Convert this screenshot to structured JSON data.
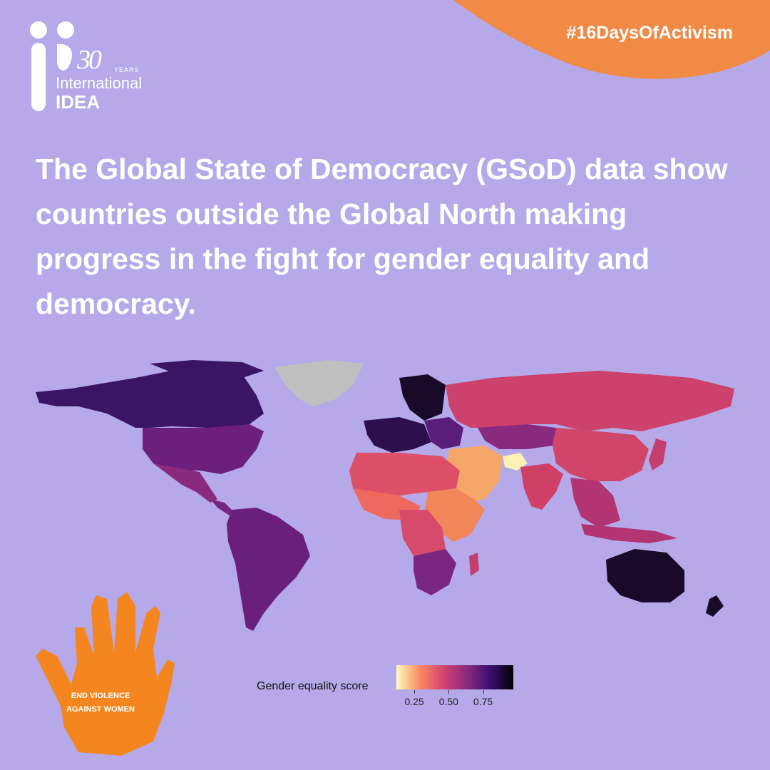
{
  "brand": {
    "logo_30": "30",
    "logo_years": "YEARS",
    "logo_international": "International",
    "logo_idea": "IDEA"
  },
  "hashtag": "#16DaysOfActivism",
  "headline": "The Global State of Democracy (GSoD) data show countries outside the Global North making progress in the fight for gender equality and democracy.",
  "legend": {
    "title": "Gender equality score",
    "ticks": [
      "0.25",
      "0.50",
      "0.75"
    ],
    "tick_values": [
      0.25,
      0.5,
      0.75
    ],
    "range": [
      0.12,
      0.97
    ]
  },
  "badge": {
    "line1": "END VIOLENCE",
    "line2": "AGAINST WOMEN",
    "icon": "handprint-icon"
  },
  "colors": {
    "background": "#b5a9ea",
    "accent_orange": "#f08a45",
    "hand_orange": "#f5861f",
    "no_data": "#bfbfbf"
  },
  "chart_data": {
    "type": "choropleth",
    "title": "",
    "legend_title": "Gender equality score",
    "scale": "magma (reversed)",
    "ticks": [
      0.25,
      0.5,
      0.75
    ],
    "regions": [
      {
        "name": "Canada",
        "value": 0.85
      },
      {
        "name": "United States",
        "value": 0.7
      },
      {
        "name": "Mexico",
        "value": 0.6
      },
      {
        "name": "Central America",
        "value": 0.6
      },
      {
        "name": "South America",
        "value": 0.68
      },
      {
        "name": "Greenland",
        "value": null
      },
      {
        "name": "Nordics",
        "value": 0.95
      },
      {
        "name": "Western Europe",
        "value": 0.9
      },
      {
        "name": "Eastern Europe",
        "value": 0.75
      },
      {
        "name": "Russia",
        "value": 0.45
      },
      {
        "name": "Central Asia",
        "value": 0.6
      },
      {
        "name": "China",
        "value": 0.45
      },
      {
        "name": "India",
        "value": 0.45
      },
      {
        "name": "Middle East",
        "value": 0.25
      },
      {
        "name": "Afghanistan",
        "value": 0.12
      },
      {
        "name": "North Africa",
        "value": 0.4
      },
      {
        "name": "West Africa",
        "value": 0.35
      },
      {
        "name": "East Africa",
        "value": 0.6
      },
      {
        "name": "Southern Africa",
        "value": 0.62
      },
      {
        "name": "Southeast Asia",
        "value": 0.55
      },
      {
        "name": "Japan",
        "value": 0.55
      },
      {
        "name": "Australia",
        "value": 0.95
      },
      {
        "name": "New Zealand",
        "value": 0.95
      }
    ]
  }
}
